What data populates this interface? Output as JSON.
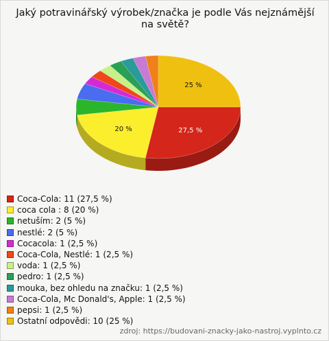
{
  "chart_data": {
    "type": "pie",
    "title": "Jaký potravinářský výrobek/značka je podle Vás nejznámější na světě?",
    "categories": [
      "Coca-Cola: 11 (27,5 %)",
      "coca cola : 8 (20 %)",
      "netuším: 2 (5 %)",
      "nestlé: 2 (5 %)",
      "Cocacola: 1 (2,5 %)",
      "Coca-Cola, Nestlé: 1 (2,5 %)",
      "voda: 1 (2,5 %)",
      "pedro: 1 (2,5 %)",
      "mouka, bez ohledu na značku: 1 (2,5 %)",
      "Coca-Cola, Mc Donald's, Apple: 1 (2,5 %)",
      "pepsi: 1 (2,5 %)",
      "Ostatní odpovědi: 10 (25 %)"
    ],
    "values": [
      27.5,
      20,
      5,
      5,
      2.5,
      2.5,
      2.5,
      2.5,
      2.5,
      2.5,
      2.5,
      25
    ],
    "value_labels": [
      "27,5 %",
      "20 %",
      null,
      null,
      null,
      null,
      null,
      null,
      null,
      null,
      null,
      "25 %"
    ],
    "colors": [
      "#d4261a",
      "#fbee2c",
      "#2bb52b",
      "#4a6cf0",
      "#d42ad4",
      "#f0461a",
      "#c8f08a",
      "#2aa055",
      "#2a9a9a",
      "#c87ad4",
      "#f0801a",
      "#f0c010"
    ],
    "source": "zdroj: https://budovani-znacky-jako-nastroj.vyplnto.cz"
  }
}
